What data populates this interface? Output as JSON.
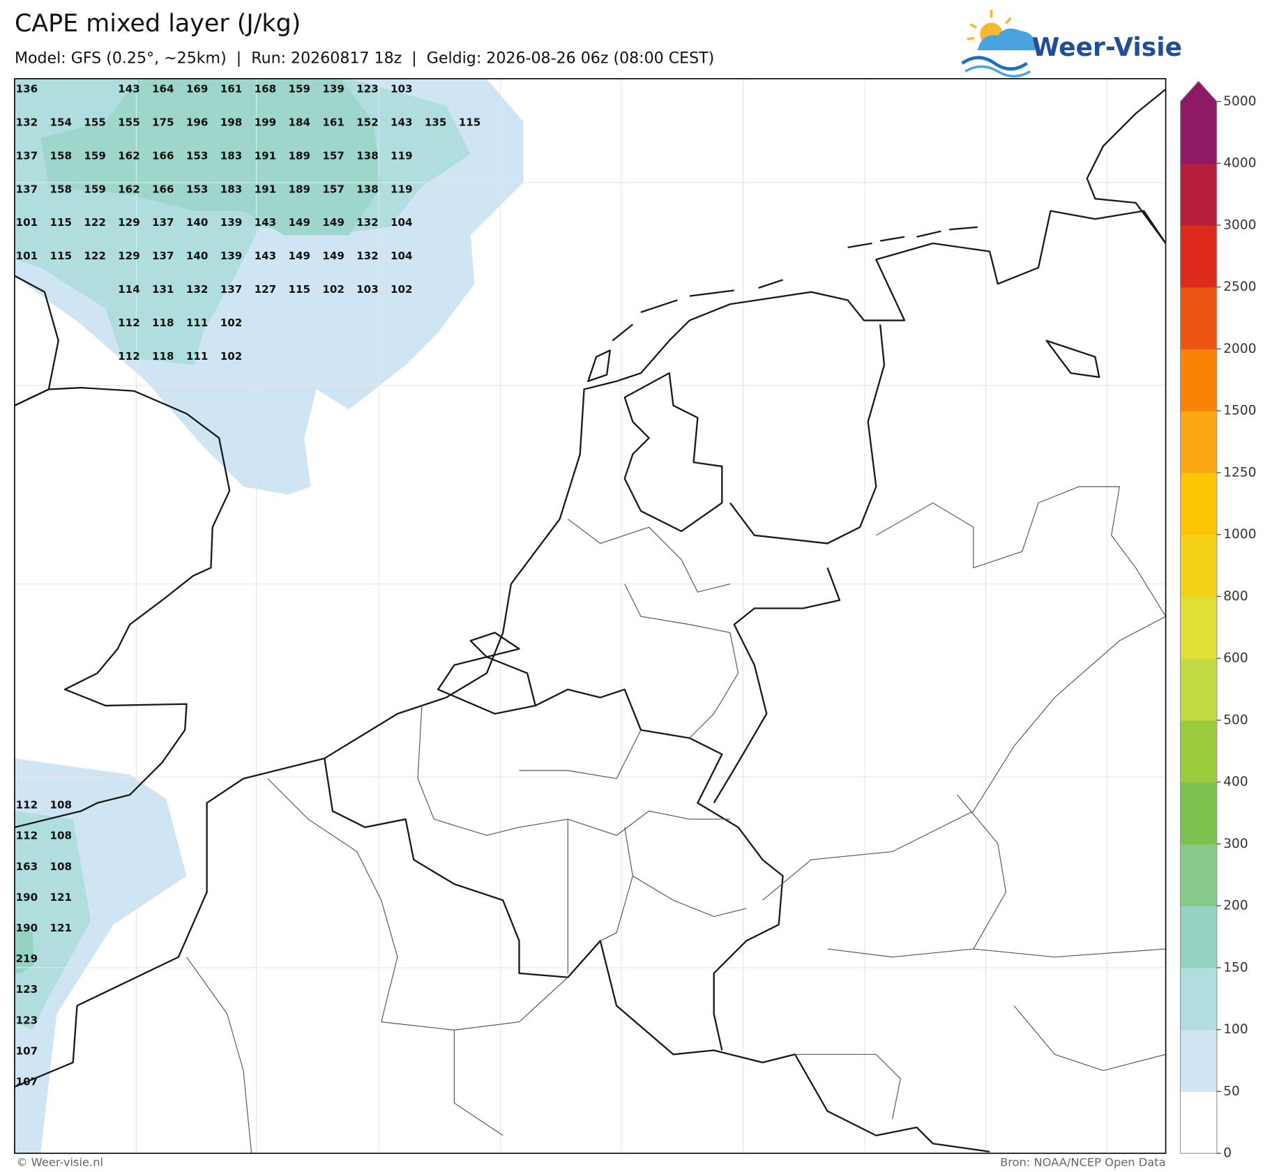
{
  "header": {
    "title": "CAPE mixed layer (J/kg)",
    "subtitle": "Model: GFS (0.25°, ~25km)  |  Run: 20260817 18z  |  Geldig: 2026-08-26 06z (08:00 CEST)",
    "logo": "Weer-Visie"
  },
  "map": {
    "point_labels_north": [
      [
        136,
        null,
        null,
        143,
        164,
        169,
        161,
        168,
        159,
        139,
        123,
        103
      ],
      [
        132,
        154,
        155,
        155,
        175,
        196,
        198,
        199,
        184,
        161,
        152,
        143,
        135,
        115
      ],
      [
        137,
        158,
        159,
        162,
        166,
        153,
        183,
        191,
        189,
        157,
        138,
        119
      ],
      [
        137,
        158,
        159,
        162,
        166,
        153,
        183,
        191,
        189,
        157,
        138,
        119
      ],
      [
        101,
        115,
        122,
        129,
        137,
        140,
        139,
        143,
        149,
        149,
        132,
        104
      ],
      [
        101,
        115,
        122,
        129,
        137,
        140,
        139,
        143,
        149,
        149,
        132,
        104
      ],
      [
        null,
        null,
        null,
        114,
        131,
        132,
        137,
        127,
        115,
        102,
        103,
        102
      ],
      [
        null,
        null,
        null,
        112,
        118,
        111,
        102
      ],
      [
        null,
        null,
        null,
        112,
        118,
        111,
        102
      ]
    ],
    "point_labels_southwest": [
      [
        112,
        108
      ],
      [
        112,
        108
      ],
      [
        163,
        108
      ],
      [
        190,
        121
      ],
      [
        190,
        121
      ],
      [
        219
      ],
      [
        123
      ],
      [
        123
      ],
      [
        107
      ],
      [
        107
      ]
    ]
  },
  "colorbar": {
    "ticks": [
      0,
      50,
      100,
      150,
      200,
      300,
      400,
      500,
      600,
      800,
      1000,
      1250,
      1500,
      2000,
      2500,
      3000,
      4000,
      5000
    ],
    "colors": [
      "#ffffff",
      "#cfe5f4",
      "#b0ddde",
      "#96d2c4",
      "#86c98a",
      "#7cc14e",
      "#9acb3d",
      "#c3da43",
      "#e0df36",
      "#f2d317",
      "#fbc505",
      "#fba615",
      "#f98207",
      "#ec5412",
      "#de2a1d",
      "#b81d3b",
      "#8e1a66"
    ]
  },
  "footer": {
    "left": "© Weer-visie.nl",
    "right": "Bron: NOAA/NCEP Open Data"
  }
}
